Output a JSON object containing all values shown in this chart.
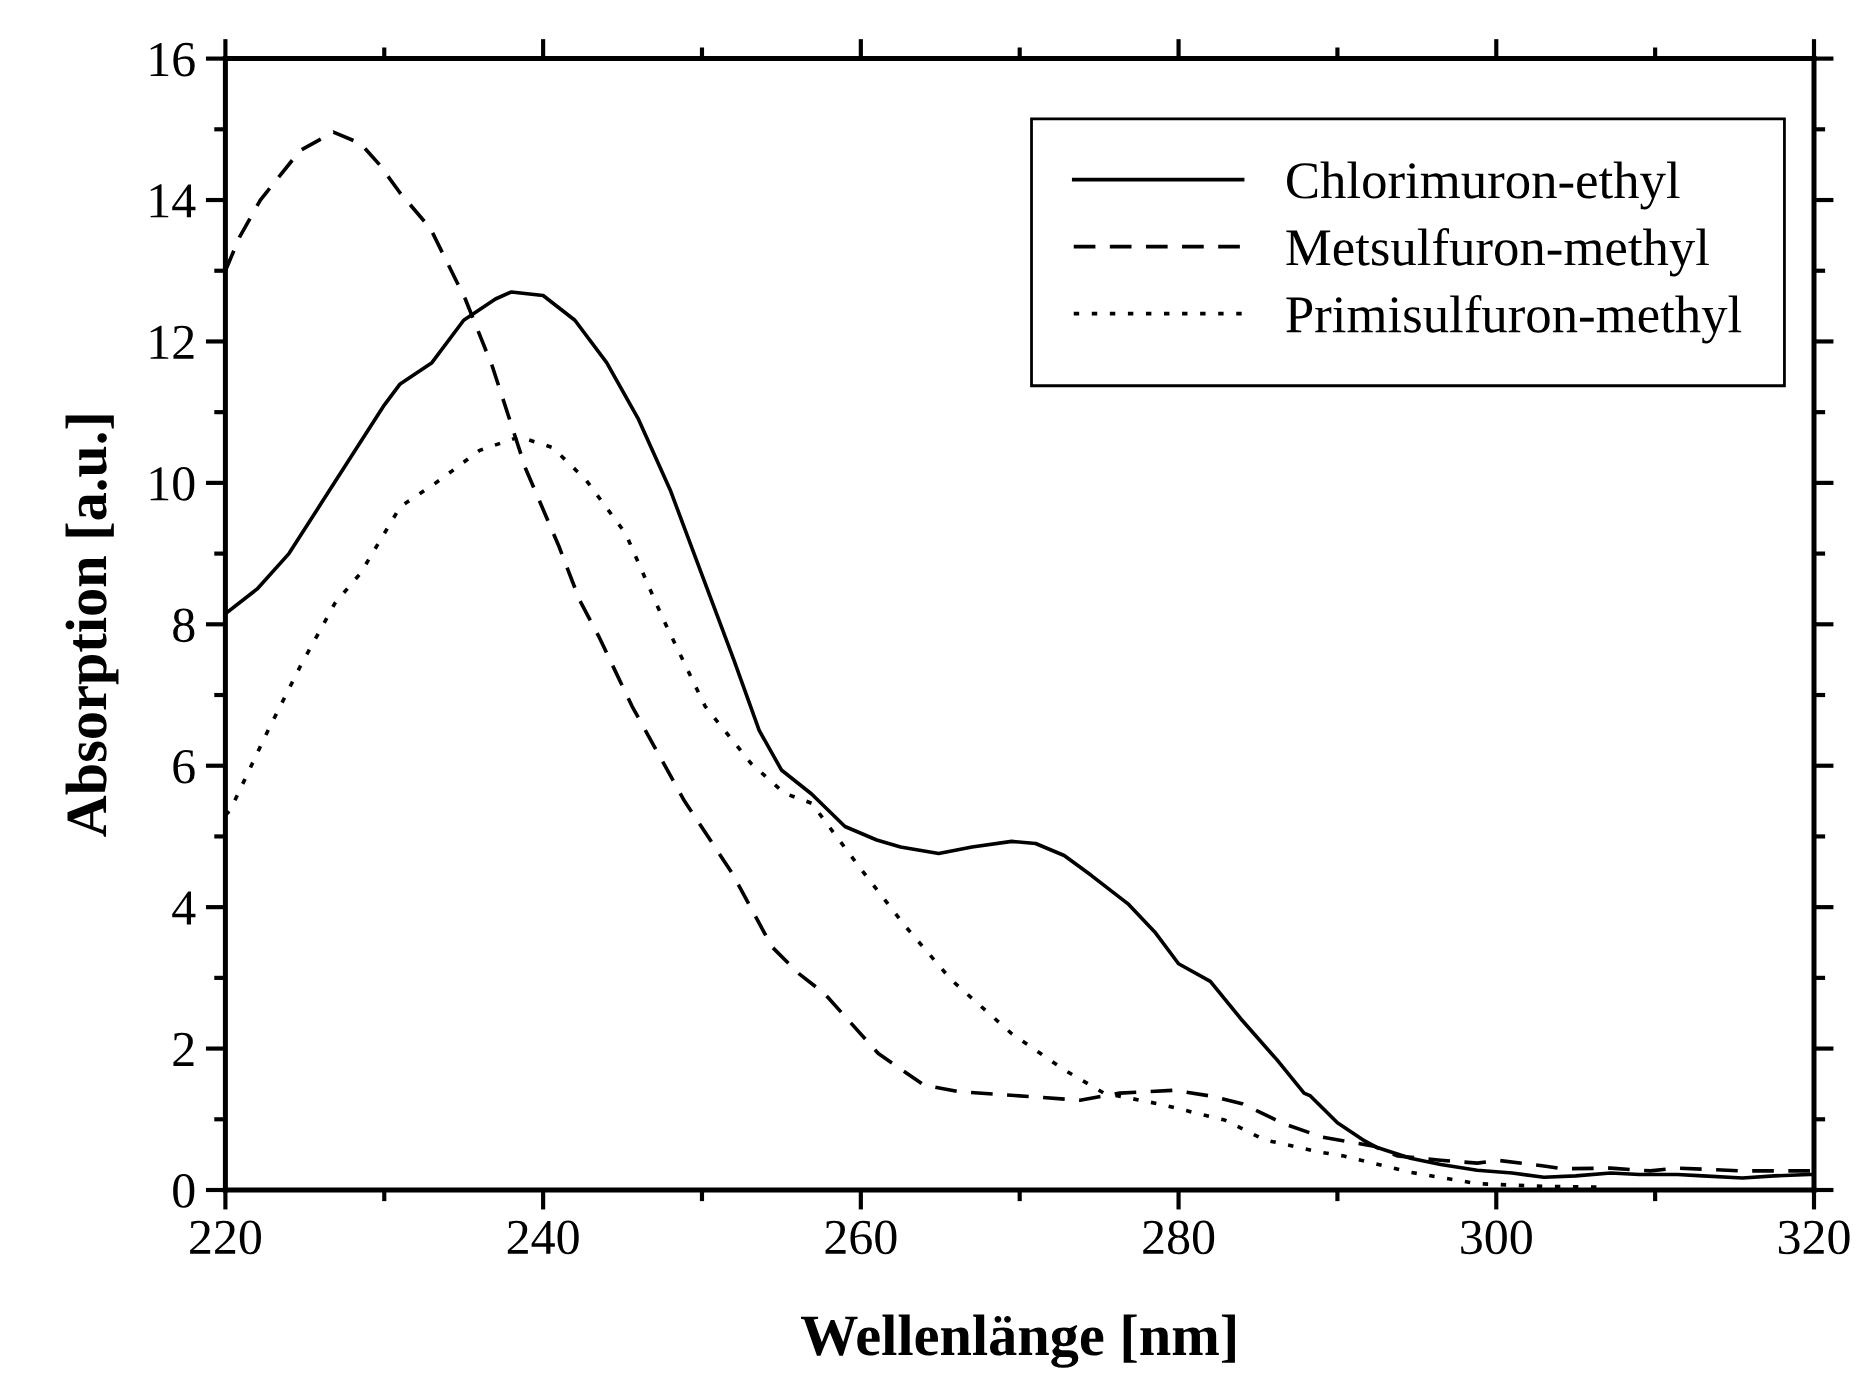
{
  "chart_data": {
    "type": "line",
    "xlabel": "Wellenlänge [nm]",
    "ylabel": "Absorption [a.u.]",
    "xlim": [
      220,
      320
    ],
    "ylim": [
      0,
      16
    ],
    "xticks": [
      220,
      240,
      260,
      280,
      300,
      320
    ],
    "yticks": [
      0,
      2,
      4,
      6,
      8,
      10,
      12,
      14,
      16
    ],
    "grid": false,
    "legend": "top right",
    "marker": "none",
    "series": [
      {
        "name": "Chlorimuron-ethyl",
        "color": "#000000",
        "line_style": "solid",
        "x": [
          220,
          222,
          224,
          226,
          228,
          230,
          231,
          233,
          235,
          237,
          238,
          240,
          242,
          244,
          246,
          248,
          250,
          252,
          253.6,
          255,
          256.9,
          259,
          261,
          262.5,
          264.9,
          267,
          269.5,
          271,
          272.8,
          274.5,
          276.8,
          278.5,
          280,
          282,
          284,
          286.2,
          287.9,
          288.3,
          290,
          291.6,
          292.5,
          294.6,
          296.5,
          298.8,
          301,
          303,
          305,
          307.2,
          309,
          311.4,
          313,
          315.5,
          317.5,
          319.7,
          320
        ],
        "values": [
          8.15,
          8.5,
          9.0,
          9.7,
          10.4,
          11.1,
          11.4,
          11.7,
          12.3,
          12.6,
          12.7,
          12.65,
          12.3,
          11.7,
          10.9,
          9.9,
          8.7,
          7.5,
          6.5,
          5.94,
          5.6,
          5.14,
          4.95,
          4.85,
          4.76,
          4.85,
          4.93,
          4.9,
          4.73,
          4.45,
          4.05,
          3.65,
          3.2,
          2.95,
          2.4,
          1.84,
          1.37,
          1.33,
          0.95,
          0.71,
          0.6,
          0.45,
          0.36,
          0.28,
          0.24,
          0.18,
          0.2,
          0.24,
          0.22,
          0.22,
          0.2,
          0.17,
          0.2,
          0.22,
          0.22
        ]
      },
      {
        "name": "Metsulfuron-methyl",
        "color": "#000000",
        "line_style": "dashed",
        "x": [
          220,
          220.9,
          222.2,
          224.7,
          226.8,
          228.5,
          229.7,
          231,
          232.9,
          235.1,
          236.8,
          238.9,
          241,
          242.3,
          243.5,
          245.6,
          248.9,
          251.9,
          254.4,
          256.1,
          257.7,
          261.1,
          264,
          266.2,
          271.3,
          273.8,
          276.3,
          279.7,
          282,
          284,
          286.6,
          289,
          292.3,
          293.8,
          296.5,
          298.8,
          300.1,
          303,
          304.2,
          307.2,
          309.7,
          311.4,
          315.5,
          319.7,
          320
        ],
        "values": [
          13.0,
          13.48,
          14.0,
          14.7,
          14.96,
          14.8,
          14.5,
          14.1,
          13.6,
          12.6,
          11.65,
          10.2,
          9.1,
          8.34,
          7.83,
          6.84,
          5.5,
          4.48,
          3.44,
          3.06,
          2.78,
          1.93,
          1.48,
          1.39,
          1.31,
          1.27,
          1.37,
          1.41,
          1.33,
          1.22,
          0.94,
          0.75,
          0.62,
          0.48,
          0.42,
          0.38,
          0.42,
          0.34,
          0.3,
          0.31,
          0.27,
          0.31,
          0.27,
          0.27,
          0.27
        ]
      },
      {
        "name": "Primisulfuron-methyl",
        "color": "#000000",
        "line_style": "dotted",
        "x": [
          220,
          220.3,
          222.6,
          224.7,
          226.9,
          228.5,
          231,
          233.5,
          236,
          238.5,
          240.6,
          242.7,
          245.2,
          247.5,
          250.2,
          253.1,
          255.2,
          256.9,
          259.9,
          262.8,
          265.7,
          269.5,
          272.8,
          275.3,
          278.7,
          282.9,
          285.4,
          288.8,
          290.4,
          294.6,
          298.8,
          303,
          306.8
        ],
        "values": [
          5.3,
          5.37,
          6.46,
          7.4,
          8.3,
          8.72,
          9.66,
          10.04,
          10.46,
          10.65,
          10.5,
          10.04,
          9.28,
          8.1,
          6.84,
          6.03,
          5.61,
          5.47,
          4.57,
          3.73,
          2.97,
          2.21,
          1.7,
          1.37,
          1.22,
          0.99,
          0.71,
          0.54,
          0.48,
          0.25,
          0.09,
          0.05,
          0.04
        ]
      }
    ]
  }
}
